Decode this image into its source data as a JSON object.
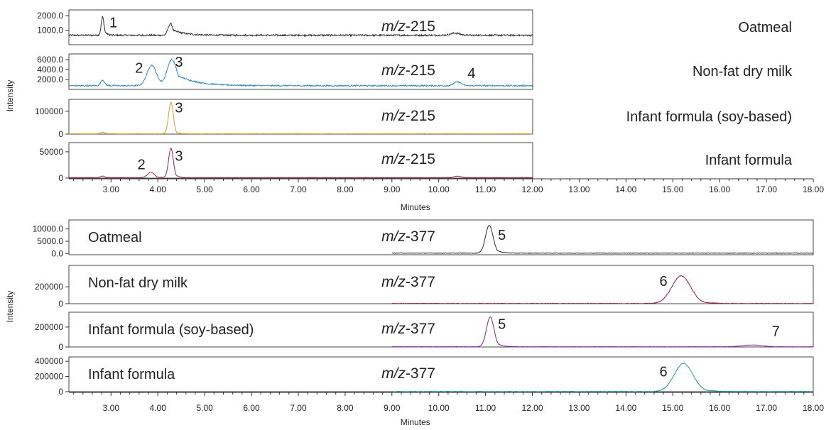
{
  "colors": {
    "axis": "#333333",
    "oatmeal_215": "#2b2b2b",
    "milk_215": "#2f8ac4",
    "soy_215": "#e79a1e",
    "infant_215": "#9a1f55",
    "oatmeal_377": "#2b2b2b",
    "milk_377": "#8c1d4d",
    "soy_377": "#7d1f9e",
    "infant_377": "#1d9c8e"
  },
  "chart_data": [
    {
      "type": "line",
      "ylabel": "Intensity",
      "xlabel": "Minutes",
      "xlim": [
        2.1,
        18.0
      ],
      "xticks": [
        "3.00",
        "4.00",
        "5.00",
        "6.00",
        "7.00",
        "8.00",
        "9.00",
        "10.00",
        "11.00",
        "12.00",
        "13.00",
        "14.00",
        "15.00",
        "16.00",
        "17.00",
        "18.00"
      ],
      "panels": [
        {
          "name": "Oatmeal",
          "mz": "m/z-215",
          "color_key": "oatmeal_215",
          "ylim": [
            0,
            2200
          ],
          "ytick_labels": [
            "2000.0",
            "1000.0"
          ],
          "ytick_values": [
            2000,
            1000
          ],
          "x_range": [
            2.1,
            12.0
          ],
          "baseline": 650,
          "noise": 55,
          "peaks": [
            {
              "label": "1",
              "rt": 2.82,
              "height": 1900,
              "width": 0.03,
              "tail": 0.05
            },
            {
              "label": "",
              "rt": 4.27,
              "height": 1450,
              "width": 0.05,
              "tail": 0.25
            },
            {
              "label": "",
              "rt": 10.35,
              "height": 800,
              "width": 0.1,
              "tail": 0.1
            }
          ],
          "annotations": [
            {
              "text": "1",
              "x": 3.05,
              "y": 1200
            }
          ]
        },
        {
          "name": "Non-fat dry milk",
          "mz": "m/z-215",
          "color_key": "milk_215",
          "ylim": [
            0,
            6600
          ],
          "ytick_labels": [
            "6000.0",
            "4000.0",
            "2000.0"
          ],
          "ytick_values": [
            6000,
            4000,
            2000
          ],
          "x_range": [
            2.1,
            12.0
          ],
          "baseline": 750,
          "noise": 130,
          "peaks": [
            {
              "label": "",
              "rt": 2.82,
              "height": 1900,
              "width": 0.04,
              "tail": 0.05
            },
            {
              "label": "2",
              "rt": 3.87,
              "height": 4900,
              "width": 0.1,
              "tail": 0.1
            },
            {
              "label": "3",
              "rt": 4.3,
              "height": 6000,
              "width": 0.1,
              "tail": 0.4
            },
            {
              "label": "4",
              "rt": 10.4,
              "height": 1500,
              "width": 0.08,
              "tail": 0.1
            }
          ],
          "annotations": [
            {
              "text": "2",
              "x": 3.6,
              "y": 3400
            },
            {
              "text": "3",
              "x": 4.45,
              "y": 4900
            },
            {
              "text": "4",
              "x": 10.7,
              "y": 2300
            }
          ]
        },
        {
          "name": "Infant formula (soy-based)",
          "mz": "m/z-215",
          "color_key": "soy_215",
          "ylim": [
            0,
            140000
          ],
          "ytick_labels": [
            "100000",
            "0"
          ],
          "ytick_values": [
            100000,
            0
          ],
          "x_range": [
            2.1,
            12.0
          ],
          "baseline": 1500,
          "noise": 500,
          "peaks": [
            {
              "label": "",
              "rt": 2.82,
              "height": 9000,
              "width": 0.04,
              "tail": 0.05
            },
            {
              "label": "3",
              "rt": 4.28,
              "height": 140000,
              "width": 0.05,
              "tail": 0.05
            }
          ],
          "annotations": [
            {
              "text": "3",
              "x": 4.45,
              "y": 95000
            }
          ]
        },
        {
          "name": "Infant formula",
          "mz": "m/z-215",
          "color_key": "infant_215",
          "ylim": [
            0,
            62000
          ],
          "ytick_labels": [
            "50000",
            "0"
          ],
          "ytick_values": [
            50000,
            0
          ],
          "x_range": [
            2.1,
            12.0
          ],
          "baseline": 1000,
          "noise": 300,
          "peaks": [
            {
              "label": "",
              "rt": 2.82,
              "height": 4000,
              "width": 0.04,
              "tail": 0.05
            },
            {
              "label": "2",
              "rt": 3.85,
              "height": 11000,
              "width": 0.07,
              "tail": 0.1
            },
            {
              "label": "3",
              "rt": 4.28,
              "height": 57000,
              "width": 0.05,
              "tail": 0.06
            },
            {
              "label": "",
              "rt": 10.4,
              "height": 3500,
              "width": 0.08,
              "tail": 0.1
            }
          ],
          "annotations": [
            {
              "text": "2",
              "x": 3.65,
              "y": 17000
            },
            {
              "text": "3",
              "x": 4.45,
              "y": 33000
            }
          ]
        }
      ]
    },
    {
      "type": "line",
      "ylabel": "Intensity",
      "xlabel": "Minutes",
      "xlim": [
        2.1,
        18.0
      ],
      "xticks": [
        "3.00",
        "4.00",
        "5.00",
        "6.00",
        "7.00",
        "8.00",
        "9.00",
        "10.00",
        "11.00",
        "12.00",
        "13.00",
        "14.00",
        "15.00",
        "16.00",
        "17.00",
        "18.00"
      ],
      "panels": [
        {
          "name": "Oatmeal",
          "mz": "m/z-377",
          "color_key": "oatmeal_377",
          "ylim": [
            -500,
            12500
          ],
          "ytick_labels": [
            "10000.0",
            "5000.0",
            "0.0"
          ],
          "ytick_values": [
            10000,
            5000,
            0
          ],
          "x_range": [
            9.0,
            18.0
          ],
          "baseline": 150,
          "noise": 120,
          "peaks": [
            {
              "label": "5",
              "rt": 11.08,
              "height": 11500,
              "width": 0.08,
              "tail": 0.1
            }
          ],
          "annotations": [
            {
              "text": "5",
              "x": 11.35,
              "y": 5500
            }
          ]
        },
        {
          "name": "Non-fat dry milk",
          "mz": "m/z-377",
          "color_key": "milk_377",
          "ylim": [
            0,
            420000
          ],
          "ytick_labels": [
            "200000",
            "0"
          ],
          "ytick_values": [
            200000,
            0
          ],
          "x_range": [
            9.0,
            18.0
          ],
          "baseline": 2000,
          "noise": 4000,
          "peaks": [
            {
              "label": "6",
              "rt": 15.18,
              "height": 330000,
              "width": 0.2,
              "tail": 0.2
            }
          ],
          "annotations": [
            {
              "text": "6",
              "x": 14.8,
              "y": 210000
            }
          ]
        },
        {
          "name": "Infant formula (soy-based)",
          "mz": "m/z-377",
          "color_key": "soy_377",
          "ylim": [
            0,
            320000
          ],
          "ytick_labels": [
            "200000",
            "0"
          ],
          "ytick_values": [
            200000,
            0
          ],
          "x_range": [
            9.0,
            18.0
          ],
          "baseline": 2000,
          "noise": 1500,
          "peaks": [
            {
              "label": "5",
              "rt": 11.1,
              "height": 300000,
              "width": 0.08,
              "tail": 0.1
            },
            {
              "label": "7",
              "rt": 16.7,
              "height": 20000,
              "width": 0.2,
              "tail": 0.2
            }
          ],
          "annotations": [
            {
              "text": "5",
              "x": 11.35,
              "y": 180000
            },
            {
              "text": "7",
              "x": 17.2,
              "y": 110000
            }
          ]
        },
        {
          "name": "Infant formula",
          "mz": "m/z-377",
          "color_key": "infant_377",
          "ylim": [
            0,
            420000
          ],
          "ytick_labels": [
            "400000",
            "200000",
            "0"
          ],
          "ytick_values": [
            400000,
            200000,
            0
          ],
          "x_range": [
            9.0,
            18.0
          ],
          "baseline": 2000,
          "noise": 4000,
          "peaks": [
            {
              "label": "6",
              "rt": 15.23,
              "height": 370000,
              "width": 0.2,
              "tail": 0.2
            }
          ],
          "annotations": [
            {
              "text": "6",
              "x": 14.8,
              "y": 200000
            }
          ]
        }
      ]
    }
  ]
}
